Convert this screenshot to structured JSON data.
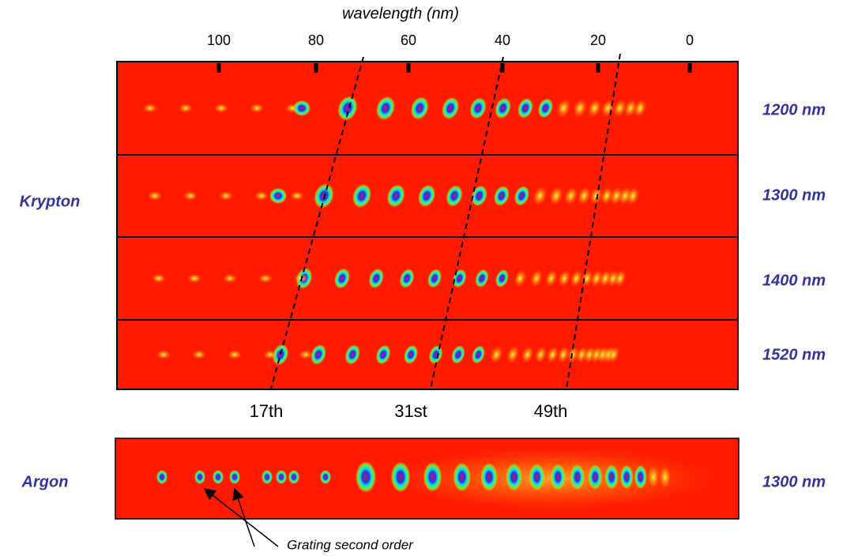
{
  "axis_label": "wavelength (nm)",
  "axis_ticks": [
    "100",
    "80",
    "60",
    "40",
    "20",
    "0"
  ],
  "gas_labels": [
    "Krypton",
    "Argon"
  ],
  "krypton_panels": [
    "1200 nm",
    "1300 nm",
    "1400 nm",
    "1520 nm"
  ],
  "argon_panel": "1300 nm",
  "order_labels": [
    "17th",
    "31st",
    "49th"
  ],
  "annotation": "Grating second order"
}
